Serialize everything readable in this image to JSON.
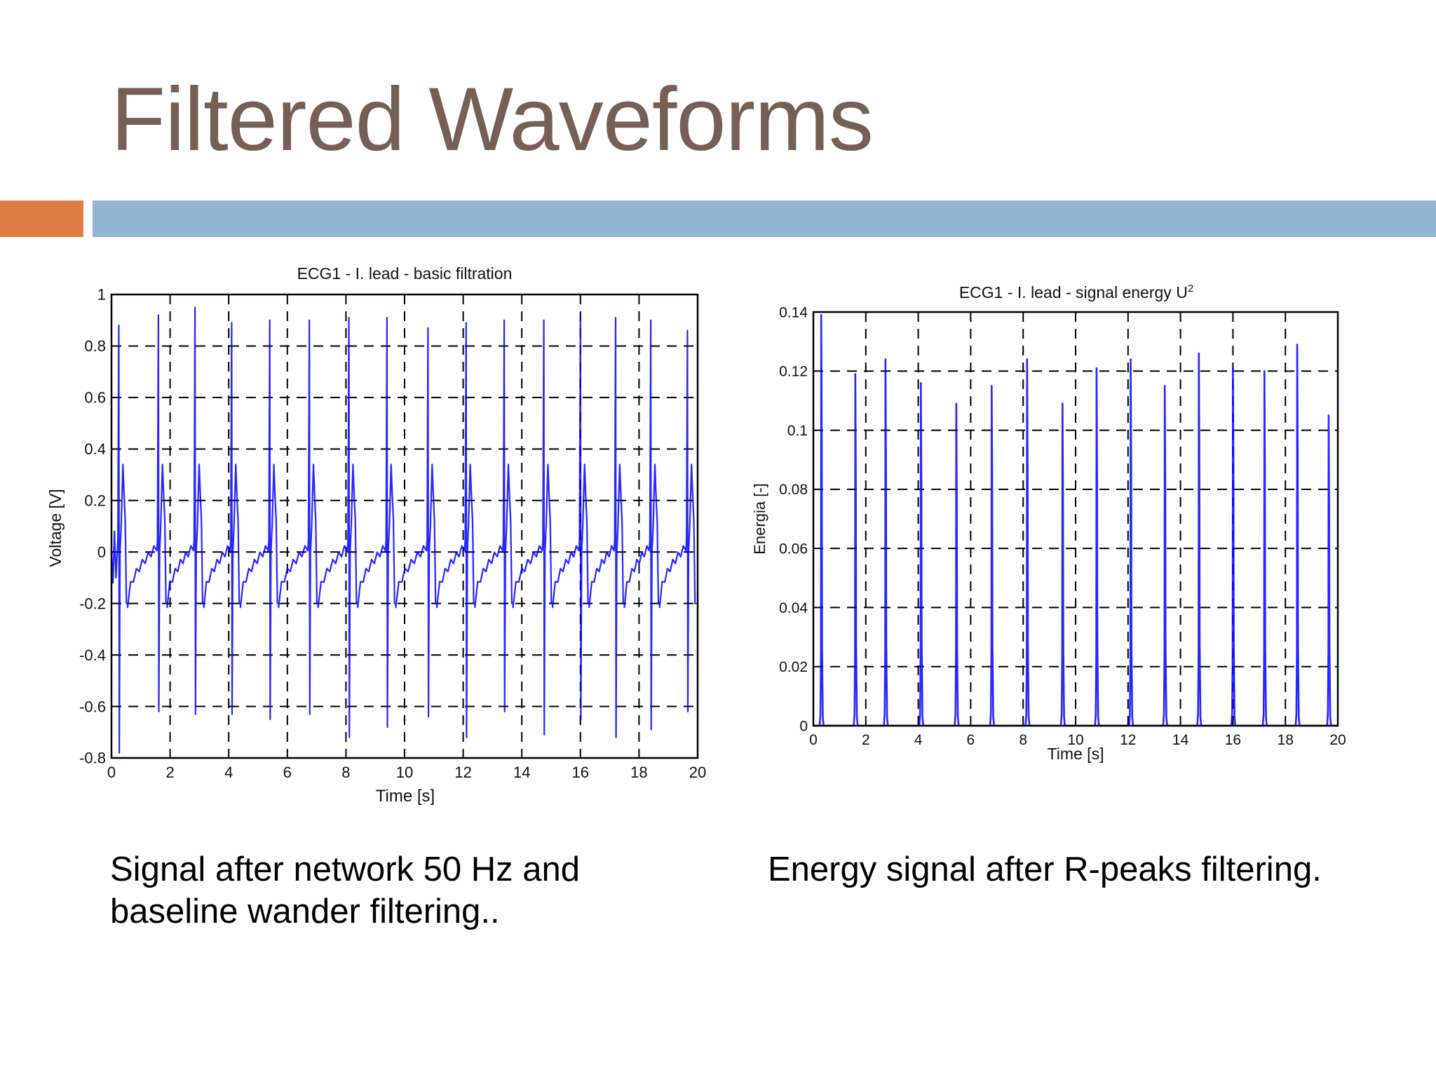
{
  "slide": {
    "title": "Filtered Waveforms",
    "colors": {
      "title": "#765f55",
      "accent_orange": "#df7f46",
      "accent_blue": "#93b4d3",
      "trace": "#0000ff"
    },
    "captions": {
      "left_line1": "Signal after network 50 Hz and",
      "left_line2": "baseline wander filtering..",
      "right": "Energy signal after R-peaks filtering."
    }
  },
  "chart_data": [
    {
      "type": "line",
      "title": "ECG1 - I. lead - basic filtration",
      "xlabel": "Time [s]",
      "ylabel": "Voltage [V]",
      "xlim": [
        0,
        20
      ],
      "ylim": [
        -0.8,
        1
      ],
      "xticks": [
        "0",
        "2",
        "4",
        "6",
        "8",
        "10",
        "12",
        "14",
        "16",
        "18",
        "20"
      ],
      "yticks": [
        "-0.8",
        "-0.6",
        "-0.4",
        "-0.2",
        "0",
        "0.2",
        "0.4",
        "0.6",
        "0.8",
        "1"
      ],
      "grid": true,
      "grid_style": "dashed",
      "series": [
        {
          "name": "ECG lead I",
          "color": "#0000ff",
          "beat_times": [
            0.25,
            1.6,
            2.85,
            4.1,
            5.4,
            6.75,
            8.1,
            9.4,
            10.8,
            12.1,
            13.4,
            14.75,
            16.0,
            17.2,
            18.4,
            19.65
          ],
          "r_peaks": [
            0.88,
            0.92,
            0.95,
            0.89,
            0.9,
            0.9,
            0.91,
            0.91,
            0.87,
            0.89,
            0.9,
            0.9,
            0.92,
            0.91,
            0.9,
            0.86
          ],
          "s_troughs": [
            -0.78,
            -0.62,
            -0.63,
            -0.63,
            -0.65,
            -0.63,
            -0.72,
            -0.68,
            -0.64,
            -0.72,
            -0.62,
            -0.71,
            -0.65,
            -0.72,
            -0.69,
            -0.62
          ],
          "t_wave_peak": 0.34,
          "baseline_min": -0.2
        }
      ]
    },
    {
      "type": "line",
      "title": "ECG1 - I. lead - signal energy U",
      "title_superscript": "2",
      "xlabel": "Time [s]",
      "ylabel": "Energia [-]",
      "xlim": [
        0,
        20
      ],
      "ylim": [
        0,
        0.14
      ],
      "xticks": [
        "0",
        "2",
        "4",
        "6",
        "8",
        "10",
        "12",
        "14",
        "16",
        "18",
        "20"
      ],
      "yticks": [
        "0",
        "0.02",
        "0.04",
        "0.06",
        "0.08",
        "0.1",
        "0.12",
        "0.14"
      ],
      "grid": true,
      "grid_style": "dashed",
      "series": [
        {
          "name": "Signal energy",
          "color": "#0000ff",
          "peak_times": [
            0.3,
            1.6,
            2.75,
            4.1,
            5.45,
            6.8,
            8.15,
            9.5,
            10.8,
            12.1,
            13.4,
            14.7,
            16.0,
            17.2,
            18.45,
            19.65
          ],
          "peak_values": [
            0.139,
            0.119,
            0.124,
            0.116,
            0.109,
            0.115,
            0.124,
            0.109,
            0.121,
            0.124,
            0.115,
            0.126,
            0.121,
            0.12,
            0.129,
            0.105
          ]
        }
      ]
    }
  ]
}
